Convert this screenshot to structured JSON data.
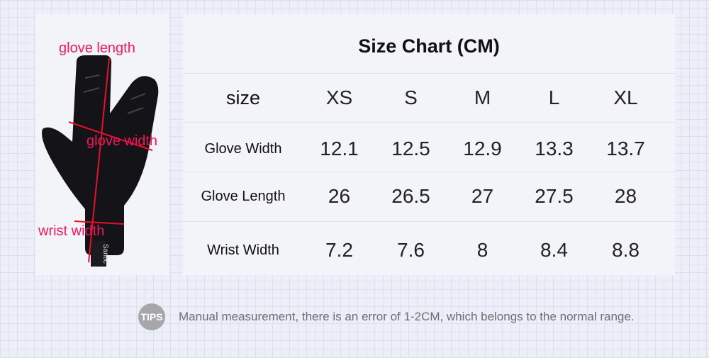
{
  "image_labels": {
    "glove_length": "glove length",
    "glove_width": "glove width",
    "wrist_width": "wrist width",
    "brand_logo": "Santic"
  },
  "table": {
    "title": "Size Chart (CM)",
    "header": {
      "label": "size",
      "sizes": [
        "XS",
        "S",
        "M",
        "L",
        "XL"
      ]
    },
    "rows": [
      {
        "label": "Glove Width",
        "values": [
          "12.1",
          "12.5",
          "12.9",
          "13.3",
          "13.7"
        ]
      },
      {
        "label": "Glove Length",
        "values": [
          "26",
          "26.5",
          "27",
          "27.5",
          "28"
        ]
      },
      {
        "label": "Wrist Width",
        "values": [
          "7.2",
          "7.6",
          "8",
          "8.4",
          "8.8"
        ]
      }
    ]
  },
  "tips": {
    "badge": "TIPS",
    "text": "Manual measurement, there is an error of 1-2CM, which belongs to the normal range."
  },
  "colors": {
    "measure_label": "#f0185a",
    "glove": "#111111"
  }
}
